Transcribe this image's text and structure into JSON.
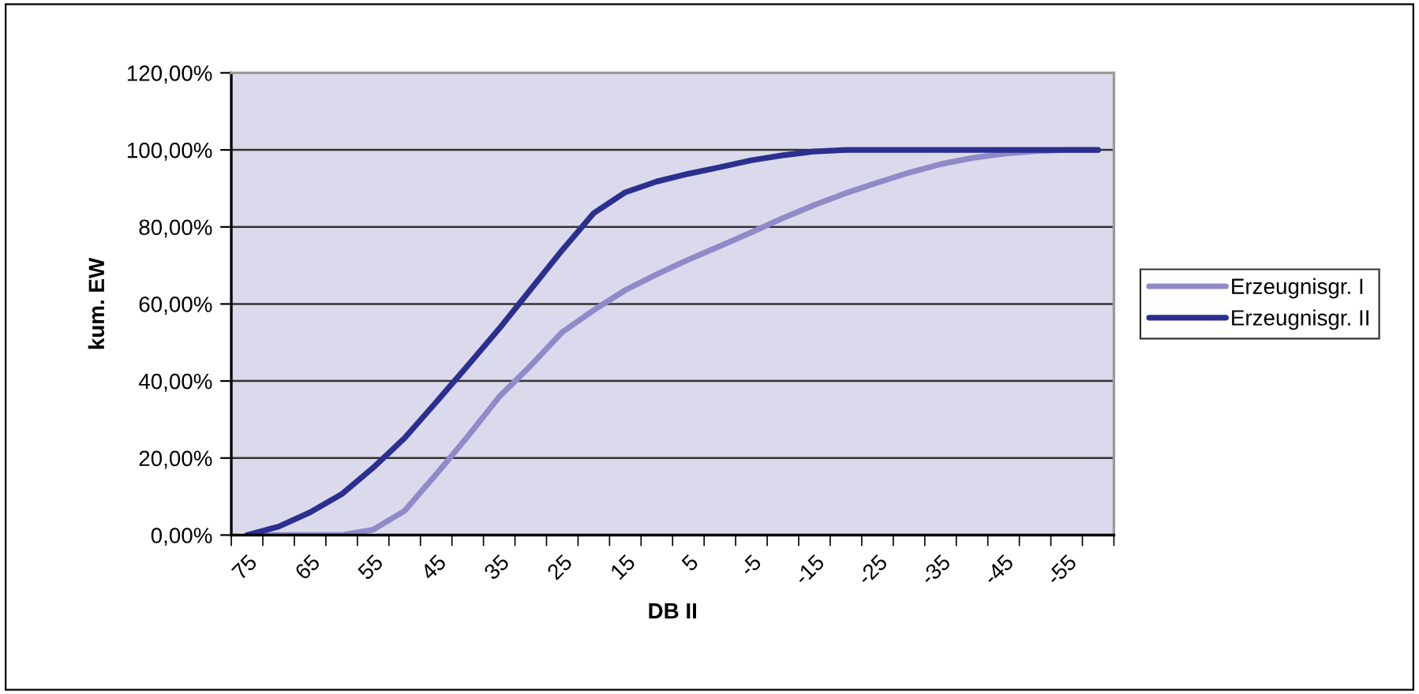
{
  "chart_data": {
    "type": "line",
    "xlabel": "DB II",
    "ylabel": "kum. EW",
    "categories": [
      "75",
      null,
      "65",
      null,
      "55",
      null,
      "45",
      null,
      "35",
      null,
      "25",
      null,
      "15",
      null,
      "5",
      null,
      "-5",
      null,
      "-15",
      null,
      "-25",
      null,
      "-35",
      null,
      "-45",
      null,
      "-55",
      null
    ],
    "series": [
      {
        "name": "Erzeugnisgr. I",
        "color": "#8f8ac8",
        "values": [
          0,
          0,
          0,
          0,
          1.4,
          6.3,
          15.8,
          25.6,
          35.9,
          44,
          52.7,
          58.4,
          63.6,
          67.7,
          71.5,
          75,
          78.6,
          82.3,
          85.7,
          88.8,
          91.5,
          94.1,
          96.3,
          97.9,
          99,
          99.7,
          100,
          100
        ]
      },
      {
        "name": "Erzeugnisgr. II",
        "color": "#2b2f8f",
        "values": [
          0,
          2.2,
          5.9,
          10.6,
          17.5,
          25.2,
          34.5,
          44,
          53.6,
          63.8,
          74,
          83.6,
          89,
          91.8,
          93.8,
          95.5,
          97.3,
          98.6,
          99.6,
          100,
          100,
          100,
          100,
          100,
          100,
          100,
          100,
          100
        ]
      }
    ],
    "ylim": [
      0,
      120
    ],
    "yticks": [
      {
        "value": 0,
        "label": "0,00%"
      },
      {
        "value": 20,
        "label": "20,00%"
      },
      {
        "value": 40,
        "label": "40,00%"
      },
      {
        "value": 60,
        "label": "60,00%"
      },
      {
        "value": 80,
        "label": "80,00%"
      },
      {
        "value": 100,
        "label": "100,00%"
      },
      {
        "value": 120,
        "label": "120,00%"
      }
    ],
    "grid": "y",
    "legend": "right",
    "marker": "none",
    "line_style": "solid"
  }
}
